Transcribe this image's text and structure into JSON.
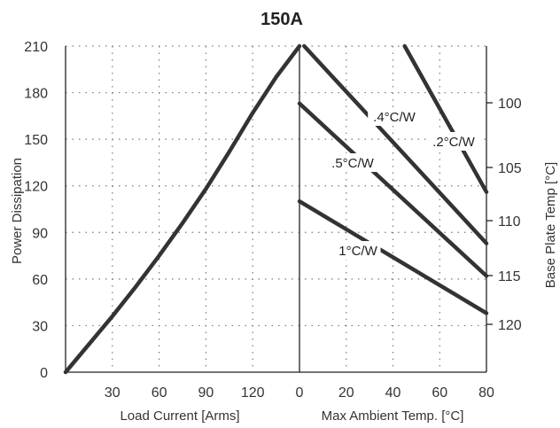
{
  "chart_data": {
    "type": "line",
    "title": "150A",
    "ylabel": "Power Dissipation",
    "ylim": [
      0,
      210
    ],
    "yticks": [
      0,
      30,
      60,
      90,
      120,
      150,
      180,
      210
    ],
    "grid": true,
    "left_panel": {
      "xlabel": "Load Current  [Arms]",
      "xlim": [
        0,
        150
      ],
      "xticks": [
        30,
        60,
        90,
        120
      ],
      "series": [
        {
          "x": [
            0,
            15,
            30,
            45,
            60,
            75,
            90,
            105,
            120,
            135,
            150
          ],
          "y": [
            0,
            18,
            36,
            55,
            75,
            96,
            118,
            142,
            167,
            190,
            210
          ]
        }
      ]
    },
    "right_panel": {
      "xlabel": "Max Ambient Temp. [°C]",
      "xlim": [
        0,
        80
      ],
      "xticks": [
        0,
        20,
        40,
        60,
        80
      ],
      "y2label": "Base Plate Temp [°C]",
      "y2ticks": [
        100,
        105,
        110,
        115,
        120
      ],
      "series": [
        {
          "name": "1°C/W",
          "x": [
            0,
            80
          ],
          "y": [
            110,
            38
          ]
        },
        {
          "name": ".5°C/W",
          "x": [
            0,
            80
          ],
          "y": [
            173,
            62
          ]
        },
        {
          "name": ".4°C/W",
          "x": [
            2,
            80
          ],
          "y": [
            210,
            83
          ]
        },
        {
          "name": ".2°C/W",
          "x": [
            45,
            80
          ],
          "y": [
            210,
            116
          ]
        }
      ]
    }
  }
}
